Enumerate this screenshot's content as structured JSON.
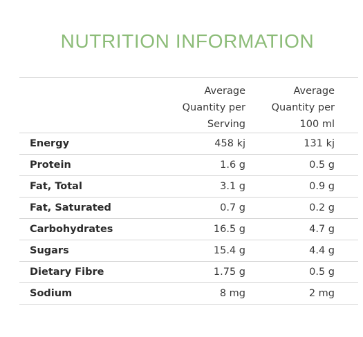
{
  "title": "NUTRITION INFORMATION",
  "header": {
    "col1": [
      "Average",
      "Quantity per",
      "Serving"
    ],
    "col2": [
      "Average",
      "Quantity per",
      "100 ml"
    ]
  },
  "rows": [
    {
      "label": "Energy",
      "per_serving": "458 kj",
      "per_100ml": "131 kj"
    },
    {
      "label": "Protein",
      "per_serving": "1.6 g",
      "per_100ml": "0.5 g"
    },
    {
      "label": "Fat, Total",
      "per_serving": "3.1 g",
      "per_100ml": "0.9 g"
    },
    {
      "label": "Fat, Saturated",
      "per_serving": "0.7 g",
      "per_100ml": "0.2 g"
    },
    {
      "label": "Carbohydrates",
      "per_serving": "16.5 g",
      "per_100ml": "4.7 g"
    },
    {
      "label": "Sugars",
      "per_serving": "15.4 g",
      "per_100ml": "4.4 g"
    },
    {
      "label": "Dietary Fibre",
      "per_serving": "1.75 g",
      "per_100ml": "0.5 g"
    },
    {
      "label": "Sodium",
      "per_serving": "8 mg",
      "per_100ml": "2 mg"
    }
  ],
  "colors": {
    "title": "#8cbc78",
    "divider": "#d4d4d4"
  }
}
